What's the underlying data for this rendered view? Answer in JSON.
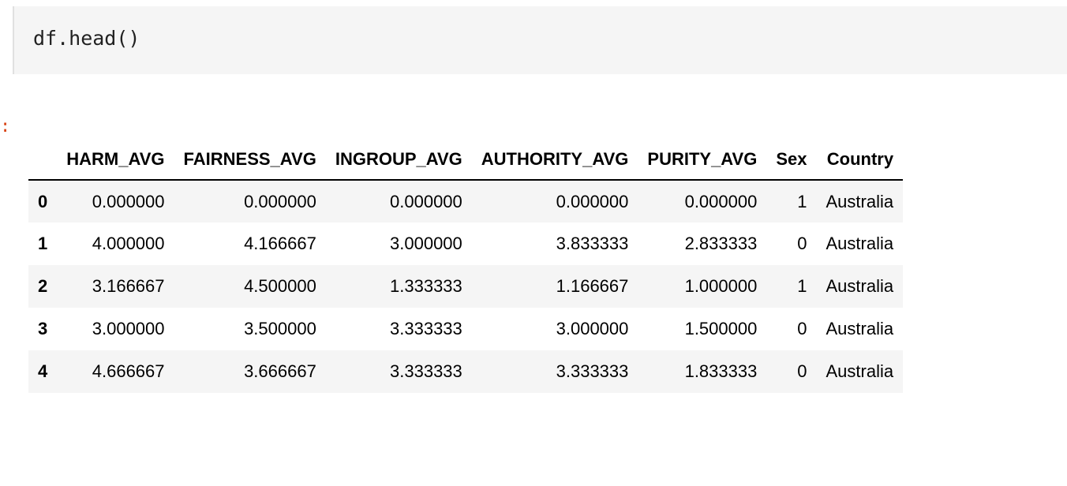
{
  "code_cell": {
    "source": "df.head()"
  },
  "output": {
    "prompt": ":"
  },
  "dataframe": {
    "index_header": "",
    "columns": [
      "HARM_AVG",
      "FAIRNESS_AVG",
      "INGROUP_AVG",
      "AUTHORITY_AVG",
      "PURITY_AVG",
      "Sex",
      "Country"
    ],
    "rows": [
      {
        "index": "0",
        "values": [
          "0.000000",
          "0.000000",
          "0.000000",
          "0.000000",
          "0.000000",
          "1",
          "Australia"
        ]
      },
      {
        "index": "1",
        "values": [
          "4.000000",
          "4.166667",
          "3.000000",
          "3.833333",
          "2.833333",
          "0",
          "Australia"
        ]
      },
      {
        "index": "2",
        "values": [
          "3.166667",
          "4.500000",
          "1.333333",
          "1.166667",
          "1.000000",
          "1",
          "Australia"
        ]
      },
      {
        "index": "3",
        "values": [
          "3.000000",
          "3.500000",
          "3.333333",
          "3.000000",
          "1.500000",
          "0",
          "Australia"
        ]
      },
      {
        "index": "4",
        "values": [
          "4.666667",
          "3.666667",
          "3.333333",
          "3.333333",
          "1.833333",
          "0",
          "Australia"
        ]
      }
    ]
  }
}
